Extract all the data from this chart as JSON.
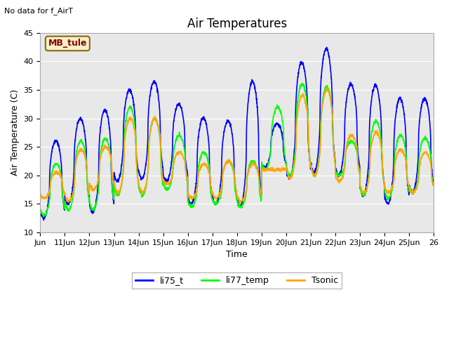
{
  "title": "Air Temperatures",
  "xlabel": "Time",
  "ylabel": "Air Temperature (C)",
  "no_data_text": "No data for f_AirT",
  "legend_label_text": "MB_tule",
  "ylim": [
    10,
    45
  ],
  "yticks": [
    10,
    15,
    20,
    25,
    30,
    35,
    40,
    45
  ],
  "figure_bg_color": "#ffffff",
  "plot_bg_color": "#e8e8e8",
  "line_colors": {
    "li75_t": "#0000ff",
    "li77_temp": "#00ff00",
    "Tsonic": "#ffa500"
  },
  "line_width": 1.2,
  "series_labels": [
    "li75_t",
    "li77_temp",
    "Tsonic"
  ],
  "num_days": 16,
  "pts_per_day": 144,
  "xtick_labels": [
    "Jun",
    "11Jun",
    "12Jun",
    "13Jun",
    "14Jun",
    "15Jun",
    "16Jun",
    "17Jun",
    "18Jun",
    "19Jun",
    "20Jun",
    "21Jun",
    "22Jun",
    "23Jun",
    "24Jun",
    "25Jun",
    "26"
  ],
  "annotation_box_color": "#f5f0c8",
  "annotation_text_color": "#8b0000",
  "annotation_fontsize": 9,
  "title_fontsize": 12,
  "axis_label_fontsize": 9,
  "tick_fontsize": 8,
  "daily_maxes_blue": [
    26,
    30,
    31.5,
    35,
    36.5,
    32.5,
    30,
    29.5,
    36.5,
    29,
    39.8,
    42.2,
    36,
    35.8,
    33.5,
    33.5
  ],
  "daily_mins_blue": [
    12.5,
    15,
    13.5,
    19,
    19.5,
    19,
    15,
    15,
    14.5,
    21.5,
    19.5,
    20.5,
    20,
    16.5,
    15,
    17
  ],
  "daily_maxes_green": [
    22,
    26,
    26.5,
    32,
    30,
    27,
    24,
    22.5,
    22.5,
    32,
    36,
    35.5,
    26,
    29.5,
    27,
    26.5
  ],
  "daily_mins_green": [
    13,
    14,
    14,
    16.5,
    16.5,
    17.5,
    14.5,
    15,
    14.5,
    21,
    20,
    20,
    20,
    16.5,
    16,
    17
  ],
  "daily_maxes_orange": [
    20.5,
    24.5,
    25,
    30,
    30,
    24,
    22,
    22.5,
    22,
    21,
    34,
    35,
    27,
    27.5,
    24.5,
    24
  ],
  "daily_mins_orange": [
    16,
    15.5,
    17.5,
    17,
    17,
    18.5,
    16,
    16,
    15.5,
    21,
    19.5,
    20,
    19,
    17,
    17,
    17
  ]
}
